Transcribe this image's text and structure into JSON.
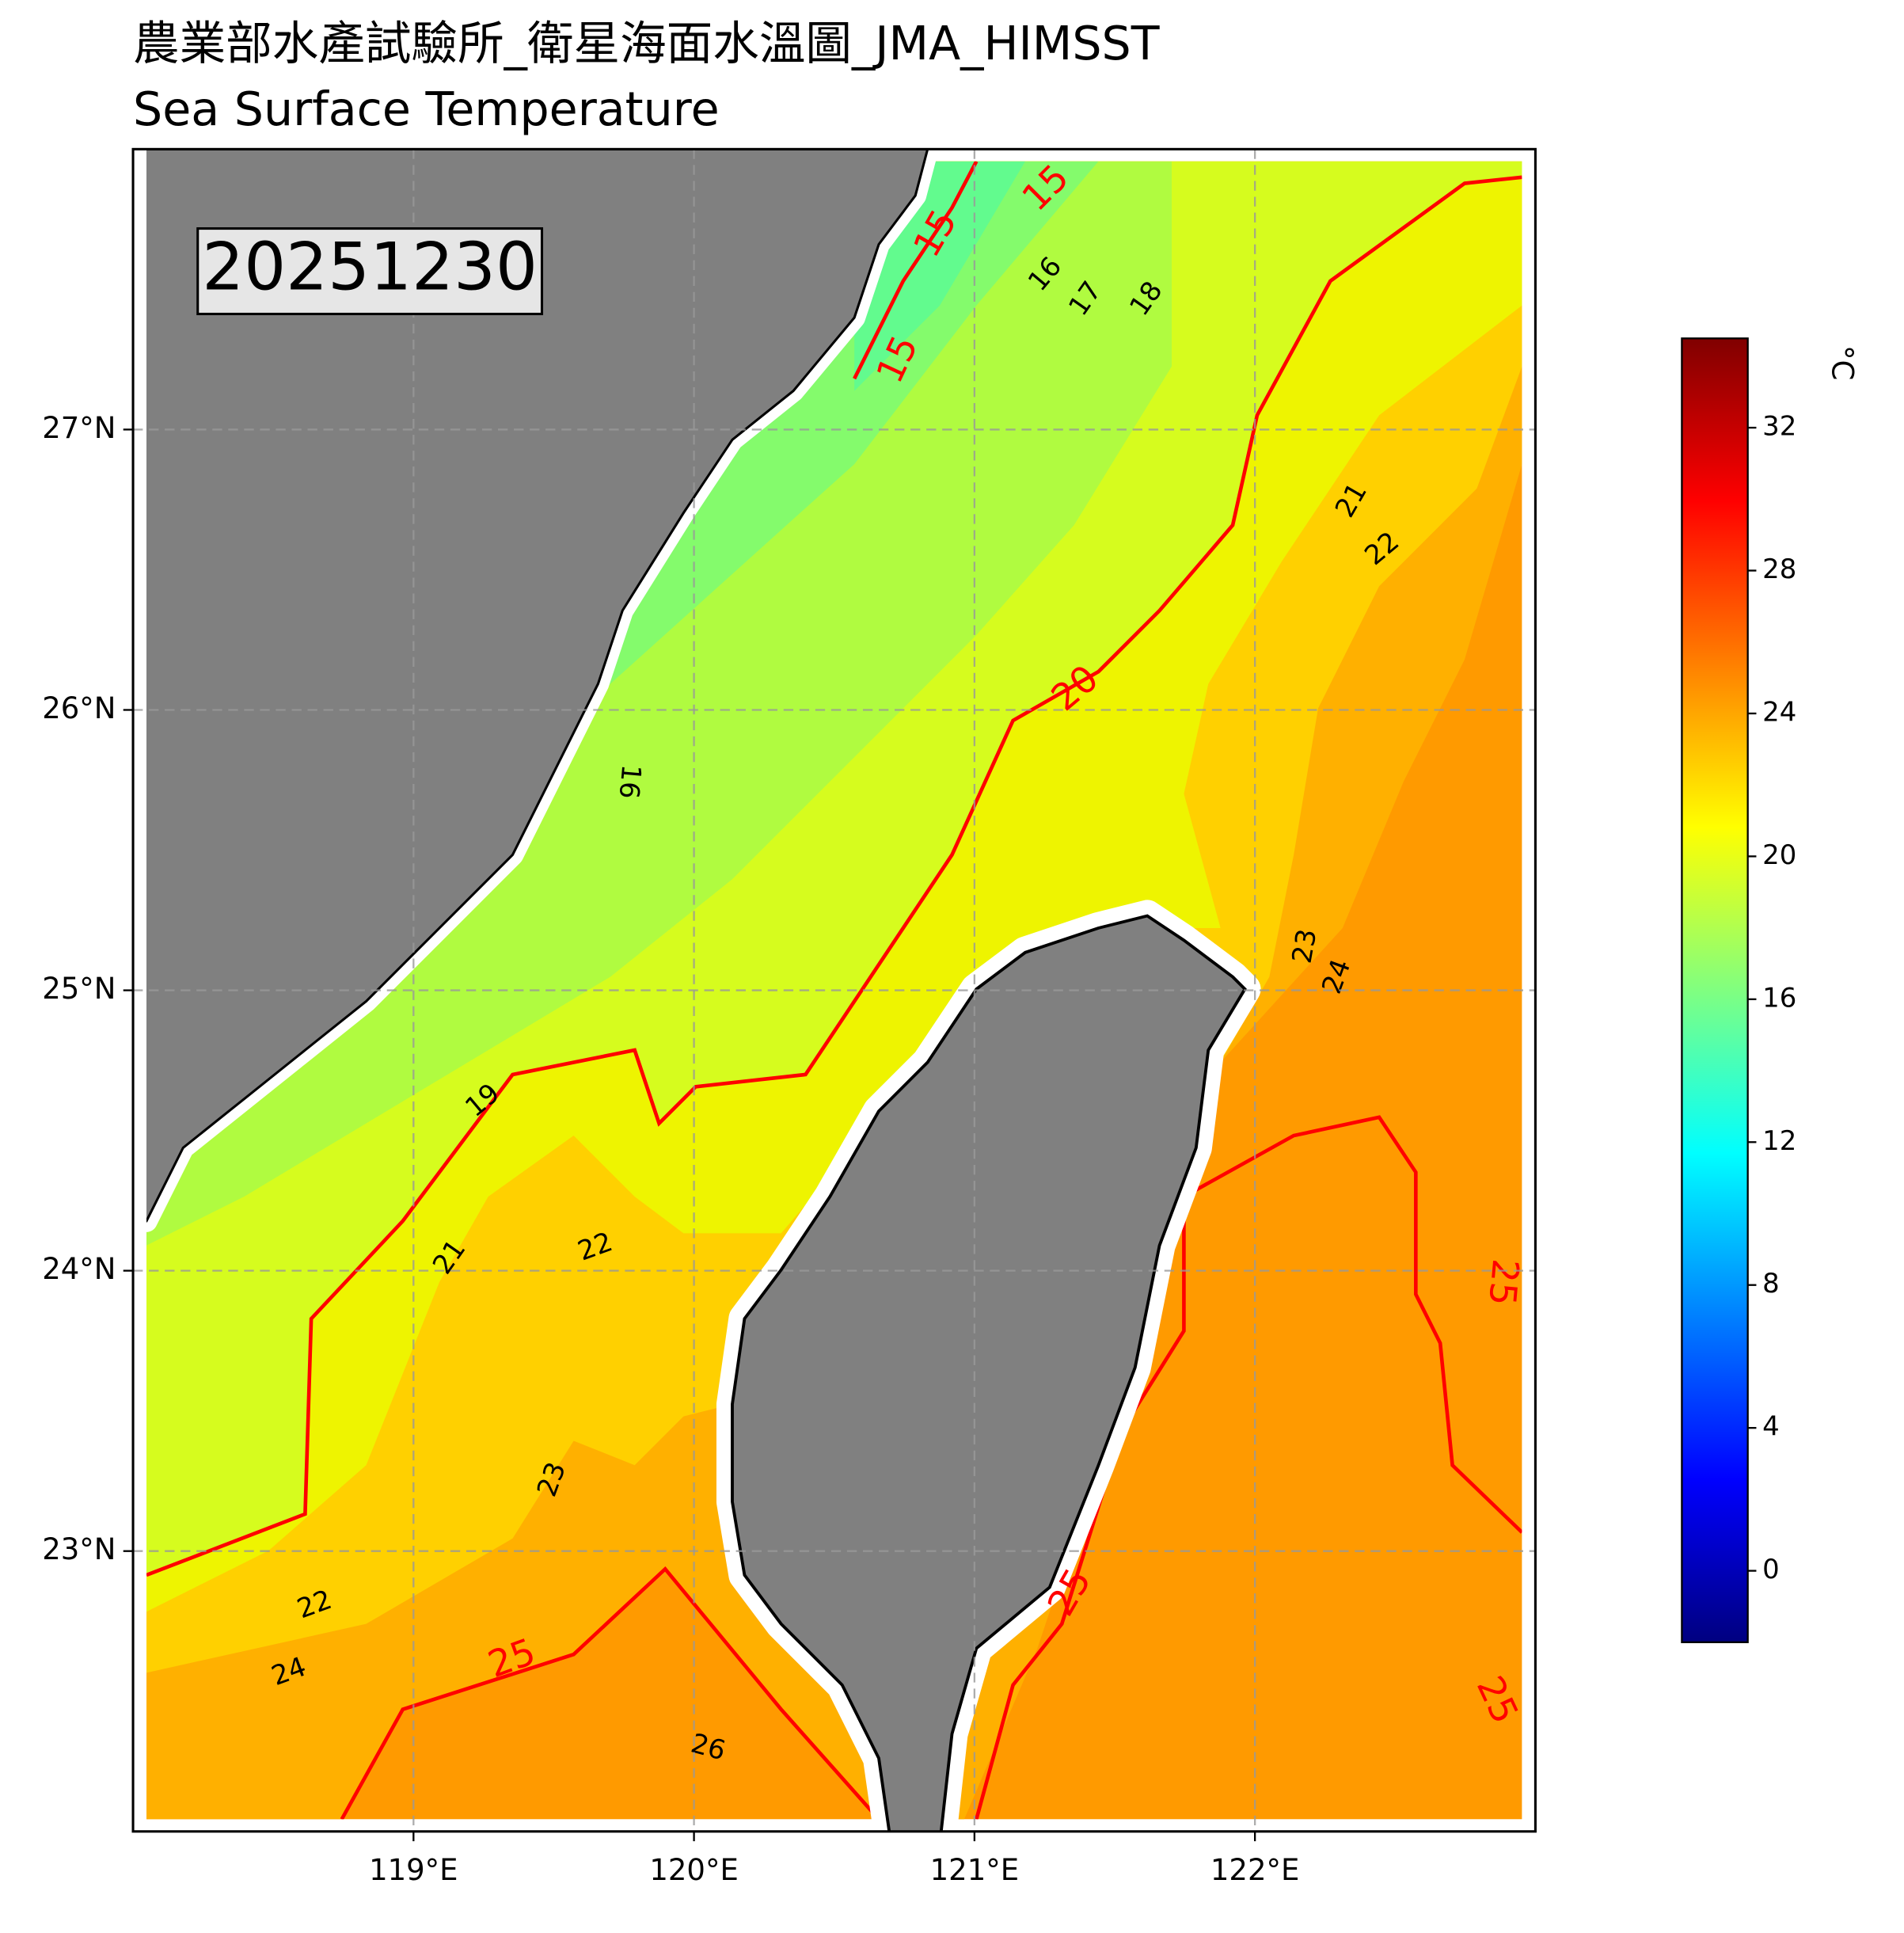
{
  "chart_data": {
    "type": "map",
    "title": "農業部水產試驗所_衛星海面水溫圖_JMA_HIMSST",
    "subtitle": "Sea Surface Temperature",
    "date_label": "20251230",
    "xlim": [
      118,
      123
    ],
    "ylim": [
      22,
      28
    ],
    "xticks": [
      {
        "value": 119,
        "label": "119°E"
      },
      {
        "value": 120,
        "label": "120°E"
      },
      {
        "value": 121,
        "label": "121°E"
      },
      {
        "value": 122,
        "label": "122°E"
      }
    ],
    "yticks": [
      {
        "value": 23,
        "label": "23°N"
      },
      {
        "value": 24,
        "label": "24°N"
      },
      {
        "value": 25,
        "label": "25°N"
      },
      {
        "value": 26,
        "label": "26°N"
      },
      {
        "value": 27,
        "label": "27°N"
      }
    ],
    "grid": true,
    "colorbar": {
      "label": "°C",
      "lim": [
        -2,
        34.5
      ],
      "ticks": [
        0,
        4,
        8,
        12,
        16,
        20,
        24,
        28,
        32
      ],
      "colormap": "jet"
    },
    "contour_labels": [
      15,
      15,
      15,
      16,
      17,
      18,
      16,
      19,
      20,
      21,
      22,
      21,
      22,
      23,
      24,
      23,
      22,
      24,
      25,
      26,
      25,
      25,
      25
    ]
  }
}
